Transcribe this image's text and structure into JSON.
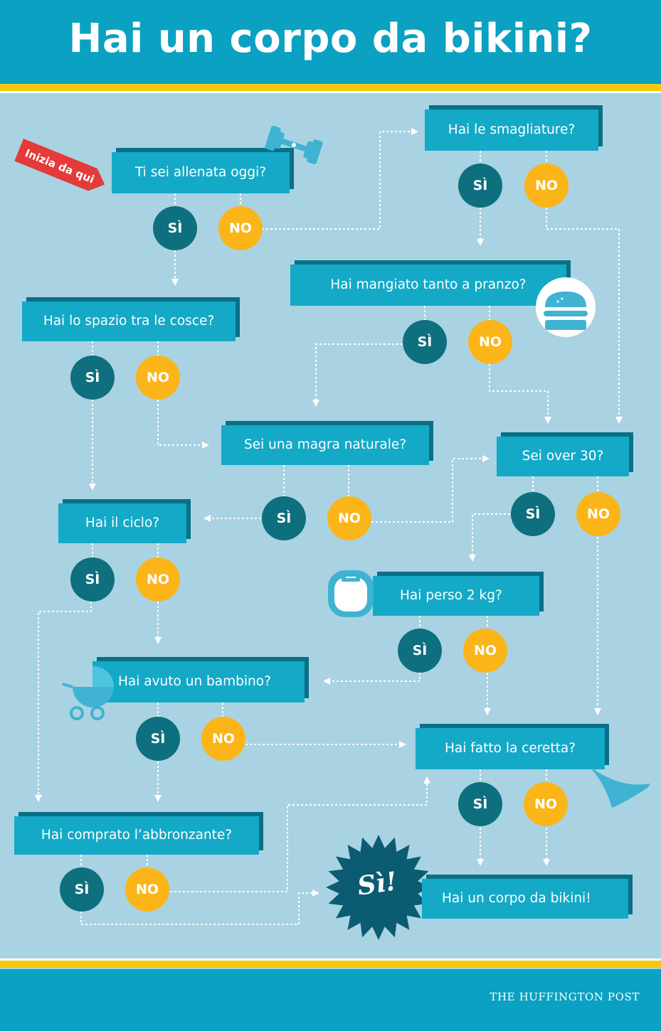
{
  "title": "Hai un corpo da bikini?",
  "start_label": "Inizia da qui",
  "questions": [
    {
      "id": "q1",
      "text": "Ti sei allenata oggi?"
    },
    {
      "id": "q2",
      "text": "Hai le smagliature?"
    },
    {
      "id": "q3",
      "text": "Hai mangiato tanto a pranzo?"
    },
    {
      "id": "q4",
      "text": "Hai lo spazio tra le cosce?"
    },
    {
      "id": "q5",
      "text": "Sei una magra naturale?"
    },
    {
      "id": "q6",
      "text": "Sei over 30?"
    },
    {
      "id": "q7",
      "text": "Hai il ciclo?"
    },
    {
      "id": "q8",
      "text": "Hai perso 2 kg?"
    },
    {
      "id": "q9",
      "text": "Hai avuto un bambino?"
    },
    {
      "id": "q10",
      "text": "Hai fatto la ceretta?"
    },
    {
      "id": "q11",
      "text": "Hai comprato l’abbronzante?"
    }
  ],
  "answers": {
    "yes": "SÌ",
    "no": "NO"
  },
  "result": {
    "burst": "Sì!",
    "text": "Hai un corpo da bikini!"
  },
  "footer": {
    "brand": "THE HUFFINGTON POST"
  },
  "icons": [
    "dumbbell-icon",
    "burger-icon",
    "scale-icon",
    "stroller-icon",
    "bikini-bottom-icon"
  ],
  "colors": {
    "header": "#0aa1c2",
    "background": "#a9d3e2",
    "box": "#14a9c7",
    "box_shadow": "#0b6f86",
    "yes": "#0e6f7e",
    "no": "#fbb519",
    "stripe": "#f6c90e",
    "start": "#e53a3a"
  }
}
